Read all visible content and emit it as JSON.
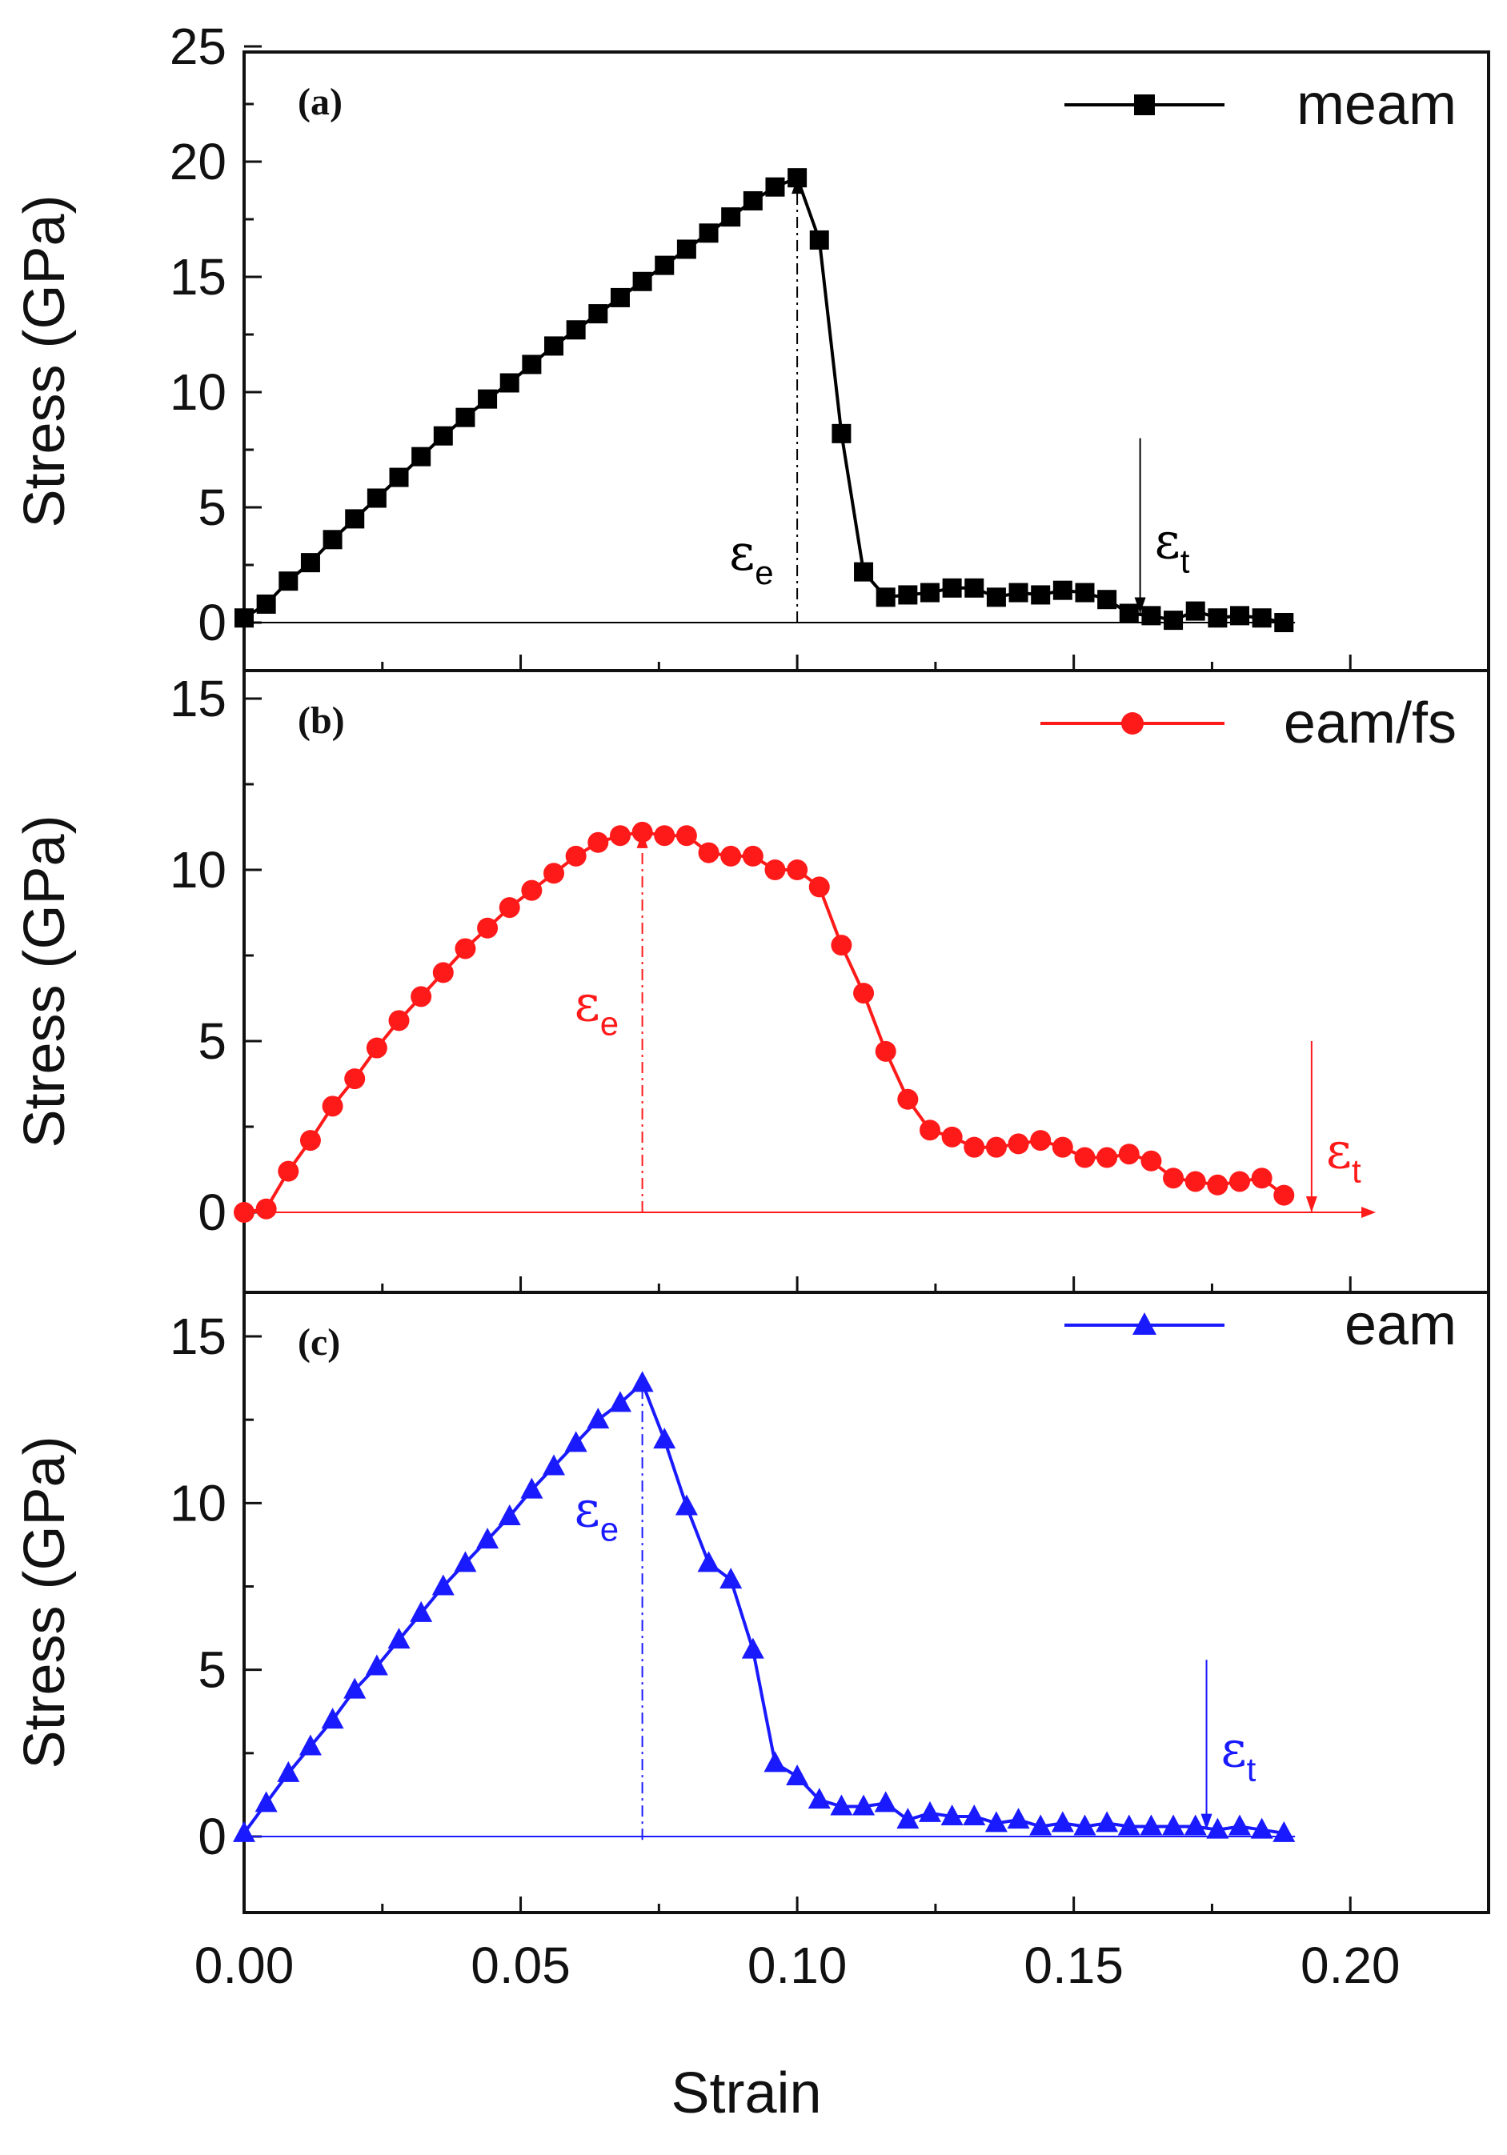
{
  "chart_data": {
    "type": "line",
    "shared_x_axis": {
      "label": "Strain",
      "range": [
        0,
        0.225
      ],
      "ticks": [
        0,
        0.05,
        0.1,
        0.15,
        0.2
      ],
      "tick_labels": [
        "0.00",
        "0.05",
        "0.10",
        "0.15",
        "0.20"
      ]
    },
    "panels": [
      {
        "id": "a",
        "panel_label": "(a)",
        "ylabel": "Stress (GPa)",
        "ylim": [
          -2,
          25
        ],
        "yticks": [
          0,
          5,
          10,
          15,
          20,
          25
        ],
        "ytick_labels": [
          "0",
          "5",
          "10",
          "15",
          "20",
          "25"
        ],
        "color": "#000000",
        "marker": "square",
        "series": [
          {
            "name": "meam",
            "x": [
              0,
              0.004,
              0.008,
              0.012,
              0.016,
              0.02,
              0.024,
              0.028,
              0.032,
              0.036,
              0.04,
              0.044,
              0.048,
              0.052,
              0.056,
              0.06,
              0.064,
              0.068,
              0.072,
              0.076,
              0.08,
              0.084,
              0.088,
              0.092,
              0.096,
              0.1,
              0.104,
              0.108,
              0.112,
              0.116,
              0.12,
              0.124,
              0.128,
              0.132,
              0.136,
              0.14,
              0.144,
              0.148,
              0.152,
              0.156,
              0.16,
              0.164,
              0.168,
              0.172,
              0.176,
              0.18,
              0.184,
              0.188
            ],
            "y": [
              0.2,
              0.8,
              1.8,
              2.6,
              3.6,
              4.5,
              5.4,
              6.3,
              7.2,
              8.1,
              8.9,
              9.7,
              10.4,
              11.2,
              12.0,
              12.7,
              13.4,
              14.1,
              14.8,
              15.5,
              16.2,
              16.9,
              17.6,
              18.3,
              18.9,
              19.3,
              16.6,
              8.2,
              2.2,
              1.1,
              1.2,
              1.3,
              1.5,
              1.5,
              1.1,
              1.3,
              1.2,
              1.4,
              1.3,
              1.0,
              0.4,
              0.3,
              0.1,
              0.5,
              0.2,
              0.3,
              0.2,
              0.0
            ]
          }
        ],
        "annotations": [
          {
            "symbol": "ε",
            "subscript": "e",
            "x": 0.1,
            "y_from": 0,
            "y_to": 19.3,
            "style": "dash-dot arrow up"
          },
          {
            "symbol": "ε",
            "subscript": "t",
            "x": 0.162,
            "y_from": 8,
            "y_to": 0.4,
            "style": "solid arrow down"
          }
        ],
        "baseline_y": 0
      },
      {
        "id": "b",
        "panel_label": "(b)",
        "ylabel": "Stress (GPa)",
        "ylim": [
          -2,
          16
        ],
        "yticks": [
          0,
          5,
          10,
          15
        ],
        "ytick_labels": [
          "0",
          "5",
          "10",
          "15"
        ],
        "color": "#ff1a1a",
        "marker": "circle",
        "series": [
          {
            "name": "eam/fs",
            "x": [
              0,
              0.004,
              0.008,
              0.012,
              0.016,
              0.02,
              0.024,
              0.028,
              0.032,
              0.036,
              0.04,
              0.044,
              0.048,
              0.052,
              0.056,
              0.06,
              0.064,
              0.068,
              0.072,
              0.076,
              0.08,
              0.084,
              0.088,
              0.092,
              0.096,
              0.1,
              0.104,
              0.108,
              0.112,
              0.116,
              0.12,
              0.124,
              0.128,
              0.132,
              0.136,
              0.14,
              0.144,
              0.148,
              0.152,
              0.156,
              0.16,
              0.164,
              0.168,
              0.172,
              0.176,
              0.18,
              0.184,
              0.188
            ],
            "y": [
              0.0,
              0.1,
              1.2,
              2.1,
              3.1,
              3.9,
              4.8,
              5.6,
              6.3,
              7.0,
              7.7,
              8.3,
              8.9,
              9.4,
              9.9,
              10.4,
              10.8,
              11.0,
              11.1,
              11.0,
              11.0,
              10.5,
              10.4,
              10.4,
              10.0,
              10.0,
              9.5,
              7.8,
              6.4,
              4.7,
              3.3,
              2.4,
              2.2,
              1.9,
              1.9,
              2.0,
              2.1,
              1.9,
              1.6,
              1.6,
              1.7,
              1.5,
              1.0,
              0.9,
              0.8,
              0.9,
              1.0,
              0.5
            ]
          }
        ],
        "annotations": [
          {
            "symbol": "ε",
            "subscript": "e",
            "x": 0.072,
            "y_from": 0,
            "y_to": 11.1,
            "style": "dash-dot arrow up"
          },
          {
            "symbol": "ε",
            "subscript": "t",
            "x": 0.193,
            "y_from": 5,
            "y_to": 0,
            "style": "solid arrow down"
          }
        ],
        "baseline_y": 0
      },
      {
        "id": "c",
        "panel_label": "(c)",
        "ylabel": "Stress (GPa)",
        "ylim": [
          -2,
          16
        ],
        "yticks": [
          0,
          5,
          10,
          15
        ],
        "ytick_labels": [
          "0",
          "5",
          "10",
          "15"
        ],
        "color": "#1a1aff",
        "marker": "triangle",
        "series": [
          {
            "name": "eam",
            "x": [
              0,
              0.004,
              0.008,
              0.012,
              0.016,
              0.02,
              0.024,
              0.028,
              0.032,
              0.036,
              0.04,
              0.044,
              0.048,
              0.052,
              0.056,
              0.06,
              0.064,
              0.068,
              0.072,
              0.076,
              0.08,
              0.084,
              0.088,
              0.092,
              0.096,
              0.1,
              0.104,
              0.108,
              0.112,
              0.116,
              0.12,
              0.124,
              0.128,
              0.132,
              0.136,
              0.14,
              0.144,
              0.148,
              0.152,
              0.156,
              0.16,
              0.164,
              0.168,
              0.172,
              0.176,
              0.18,
              0.184,
              0.188
            ],
            "y": [
              0.1,
              1.0,
              1.9,
              2.7,
              3.5,
              4.4,
              5.1,
              5.9,
              6.7,
              7.5,
              8.2,
              8.9,
              9.6,
              10.4,
              11.1,
              11.8,
              12.5,
              13.0,
              13.6,
              11.9,
              9.9,
              8.2,
              7.7,
              5.6,
              2.2,
              1.8,
              1.1,
              0.9,
              0.9,
              1.0,
              0.5,
              0.7,
              0.6,
              0.6,
              0.4,
              0.5,
              0.3,
              0.4,
              0.3,
              0.4,
              0.3,
              0.3,
              0.3,
              0.3,
              0.2,
              0.3,
              0.2,
              0.1
            ]
          }
        ],
        "annotations": [
          {
            "symbol": "ε",
            "subscript": "e",
            "x": 0.072,
            "y_from": -0.1,
            "y_to": 13.6,
            "style": "dash-dot line"
          },
          {
            "symbol": "ε",
            "subscript": "t",
            "x": 0.174,
            "y_from": 5.3,
            "y_to": 0.2,
            "style": "solid arrow down"
          }
        ],
        "baseline_y": 0
      }
    ]
  }
}
